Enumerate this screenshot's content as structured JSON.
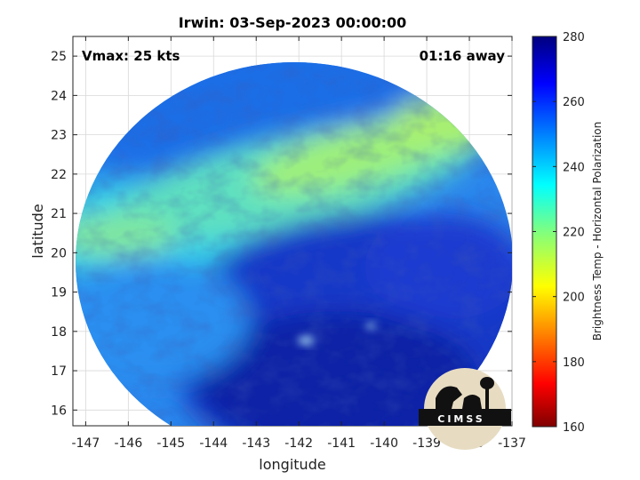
{
  "chart_data": {
    "type": "heatmap",
    "title": "Irwin: 03-Sep-2023 00:00:00",
    "xlabel": "longitude",
    "ylabel": "latitude",
    "xlim": [
      -147.3,
      -137
    ],
    "ylim": [
      15.6,
      25.5
    ],
    "x_ticks": [
      -147,
      -146,
      -145,
      -144,
      -143,
      -142,
      -141,
      -140,
      -139,
      -138,
      -137
    ],
    "y_ticks": [
      16,
      17,
      18,
      19,
      20,
      21,
      22,
      23,
      24,
      25
    ],
    "grid": true,
    "colorbar": {
      "label": "Brightness Temp - Horizontal Polarization",
      "range": [
        160,
        280
      ],
      "ticks": [
        160,
        180,
        200,
        220,
        240,
        260,
        280
      ],
      "colormap": "jet"
    },
    "annotations": {
      "top_left": "Vmax: 25 kts",
      "top_right": "01:16 away"
    },
    "field_features": [
      {
        "description": "warm band",
        "from": [
          -147.2,
          20.4
        ],
        "to": [
          -138.8,
          23.2
        ],
        "value": 226
      },
      {
        "description": "cold region",
        "center": [
          -141.5,
          17.3
        ],
        "value": 262
      },
      {
        "description": "bright spot",
        "lon": -141.9,
        "lat": 17.75
      },
      {
        "description": "bright spot",
        "lon": -140.4,
        "lat": 18.15
      }
    ]
  },
  "logo": {
    "text": "CIMSS"
  }
}
